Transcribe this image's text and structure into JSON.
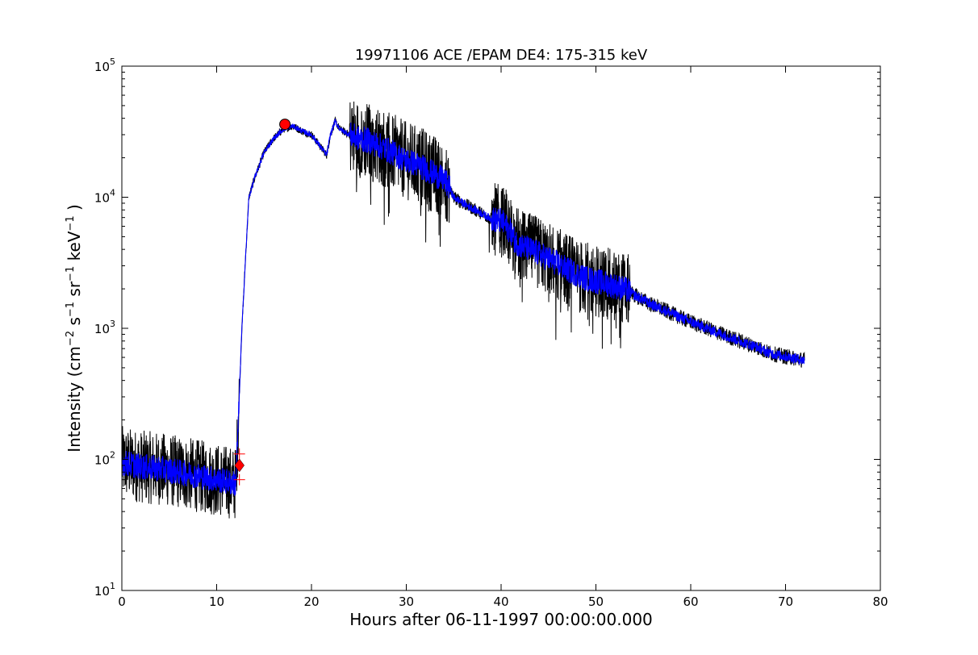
{
  "chart_data": {
    "type": "line",
    "title": "19971106 ACE /EPAM DE4: 175-315 keV",
    "xlabel": "Hours after 06-11-1997 00:00:00.000",
    "ylabel": {
      "prefix": "Intensity (cm",
      "exp1": "−2",
      "s": " s",
      "exp2": "−1",
      "sr": " sr",
      "exp3": "−1",
      "kev": " keV",
      "exp4": "−1",
      "suffix": " )"
    },
    "xlim": [
      0,
      80
    ],
    "ylim": [
      10,
      100000
    ],
    "yscale": "log",
    "x_ticks": [
      "0",
      "10",
      "20",
      "30",
      "40",
      "50",
      "60",
      "70",
      "80"
    ],
    "y_ticks": [
      {
        "value": 10,
        "base": "10",
        "exp": "1"
      },
      {
        "value": 100,
        "base": "10",
        "exp": "2"
      },
      {
        "value": 1000,
        "base": "10",
        "exp": "3"
      },
      {
        "value": 10000,
        "base": "10",
        "exp": "4"
      },
      {
        "value": 100000,
        "base": "10",
        "exp": "5"
      }
    ],
    "colors": {
      "raw": "#000000",
      "smoothed": "#0000ff",
      "markers": "#ff0000"
    },
    "series": [
      {
        "role": "raw-intensity",
        "x": [
          0,
          2,
          4,
          6,
          8,
          10,
          11,
          12,
          12.3,
          12.6,
          13,
          13.4,
          14,
          15,
          16,
          17,
          18,
          19,
          20,
          21,
          21.6,
          22,
          22.5,
          23,
          24,
          25,
          26,
          27,
          28,
          29,
          30,
          31,
          32,
          33,
          34,
          34.5,
          35,
          36,
          37,
          38,
          39,
          40,
          41,
          41.5,
          42,
          43,
          44,
          45,
          46,
          47,
          48,
          49,
          50,
          51,
          52,
          53,
          53.6,
          54,
          55,
          56,
          57,
          58,
          59,
          60,
          61,
          62,
          63,
          64,
          65,
          66,
          67,
          68,
          69,
          70,
          71,
          72
        ],
        "values": [
          95,
          88,
          85,
          80,
          75,
          70,
          68,
          65,
          200,
          800,
          3000,
          10000,
          14000,
          22000,
          28000,
          33000,
          35000,
          32000,
          30000,
          24000,
          21000,
          30000,
          38000,
          33000,
          30000,
          28000,
          27000,
          25000,
          23000,
          21000,
          19000,
          18000,
          16500,
          15000,
          13500,
          12000,
          10000,
          9000,
          8200,
          7500,
          6800,
          6600,
          5500,
          4600,
          4300,
          4000,
          3700,
          3400,
          3100,
          2800,
          2600,
          2400,
          2300,
          2200,
          2100,
          2000,
          1900,
          1800,
          1650,
          1500,
          1400,
          1300,
          1200,
          1120,
          1050,
          980,
          920,
          860,
          810,
          760,
          720,
          660,
          630,
          610,
          590,
          570
        ]
      },
      {
        "role": "smoothed-intensity",
        "x": [
          0,
          2,
          4,
          6,
          8,
          10,
          11,
          12,
          12.3,
          12.6,
          13,
          13.4,
          14,
          15,
          16,
          17,
          18,
          19,
          20,
          21,
          21.6,
          22,
          22.5,
          23,
          24,
          25,
          26,
          27,
          28,
          29,
          30,
          31,
          32,
          33,
          34,
          34.5,
          35,
          36,
          37,
          38,
          39,
          40,
          41,
          41.5,
          42,
          43,
          44,
          45,
          46,
          47,
          48,
          49,
          50,
          51,
          52,
          53,
          53.6,
          54,
          55,
          56,
          57,
          58,
          59,
          60,
          61,
          62,
          63,
          64,
          65,
          66,
          67,
          68,
          69,
          70,
          71,
          72
        ],
        "values": [
          95,
          88,
          85,
          80,
          75,
          70,
          68,
          65,
          200,
          800,
          3000,
          10000,
          14000,
          22000,
          28000,
          33000,
          35000,
          32000,
          30000,
          24000,
          21000,
          30000,
          38000,
          33000,
          30000,
          28000,
          27000,
          25000,
          23000,
          21000,
          19000,
          18000,
          16500,
          15000,
          13500,
          12000,
          10000,
          9000,
          8200,
          7500,
          6800,
          6600,
          5500,
          4600,
          4300,
          4000,
          3700,
          3400,
          3100,
          2800,
          2600,
          2400,
          2300,
          2200,
          2100,
          2000,
          1900,
          1800,
          1650,
          1500,
          1400,
          1300,
          1200,
          1120,
          1050,
          980,
          920,
          860,
          810,
          760,
          720,
          660,
          630,
          610,
          590,
          570
        ]
      }
    ],
    "markers": {
      "onset": {
        "x": 12.4,
        "y": 90,
        "error_low": 70,
        "error_high": 110
      },
      "peak": {
        "x": 17.2,
        "y": 36000
      }
    }
  }
}
